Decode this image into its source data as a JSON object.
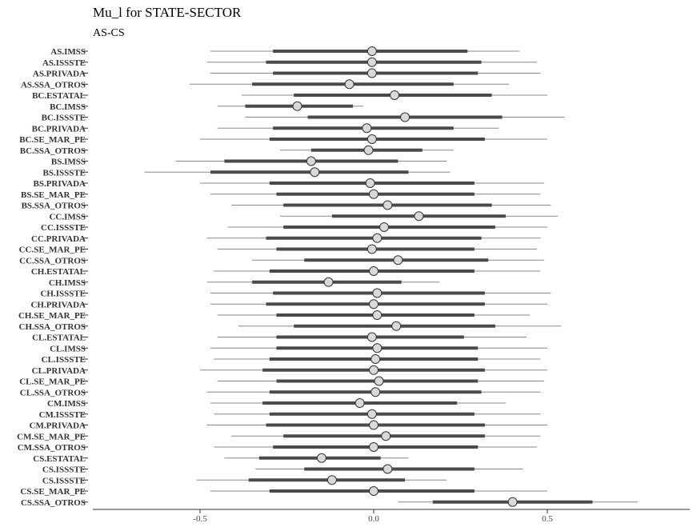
{
  "chart_data": {
    "type": "forest",
    "title": "Mu_l for STATE-SECTOR",
    "subtitle": "AS-CS",
    "xlim": [
      -0.78,
      0.9
    ],
    "xticks": [
      -0.5,
      0.0,
      0.5
    ],
    "xtick_labels": [
      "-0.5",
      "0.0",
      "0.5"
    ],
    "grid": false,
    "rows": [
      {
        "label": "AS.IMSS",
        "lo95": -0.47,
        "lo50": -0.29,
        "est": -0.005,
        "hi50": 0.27,
        "hi95": 0.42
      },
      {
        "label": "AS.ISSSTE",
        "lo95": -0.48,
        "lo50": -0.31,
        "est": -0.005,
        "hi50": 0.31,
        "hi95": 0.47
      },
      {
        "label": "AS.PRIVADA",
        "lo95": -0.47,
        "lo50": -0.29,
        "est": -0.005,
        "hi50": 0.3,
        "hi95": 0.48
      },
      {
        "label": "AS.SSA_OTROS",
        "lo95": -0.53,
        "lo50": -0.35,
        "est": -0.07,
        "hi50": 0.23,
        "hi95": 0.39
      },
      {
        "label": "BC.ESTATAL",
        "lo95": -0.38,
        "lo50": -0.23,
        "est": 0.06,
        "hi50": 0.34,
        "hi95": 0.5
      },
      {
        "label": "BC.IMSS",
        "lo95": -0.45,
        "lo50": -0.37,
        "est": -0.22,
        "hi50": -0.06,
        "hi95": -0.03
      },
      {
        "label": "BC.ISSSTE",
        "lo95": -0.37,
        "lo50": -0.19,
        "est": 0.09,
        "hi50": 0.37,
        "hi95": 0.55
      },
      {
        "label": "BC.PRIVADA",
        "lo95": -0.45,
        "lo50": -0.29,
        "est": -0.02,
        "hi50": 0.23,
        "hi95": 0.36
      },
      {
        "label": "BC.SE_MAR_PE",
        "lo95": -0.5,
        "lo50": -0.3,
        "est": -0.005,
        "hi50": 0.32,
        "hi95": 0.5
      },
      {
        "label": "BC.SSA_OTROS",
        "lo95": -0.27,
        "lo50": -0.18,
        "est": -0.015,
        "hi50": 0.14,
        "hi95": 0.23
      },
      {
        "label": "BS.IMSS",
        "lo95": -0.57,
        "lo50": -0.43,
        "est": -0.18,
        "hi50": 0.07,
        "hi95": 0.21
      },
      {
        "label": "BS.ISSSTE",
        "lo95": -0.66,
        "lo50": -0.47,
        "est": -0.17,
        "hi50": 0.1,
        "hi95": 0.22
      },
      {
        "label": "BS.PRIVADA",
        "lo95": -0.5,
        "lo50": -0.3,
        "est": -0.01,
        "hi50": 0.29,
        "hi95": 0.49
      },
      {
        "label": "BS.SE_MAR_PE",
        "lo95": -0.47,
        "lo50": -0.28,
        "est": 0.0,
        "hi50": 0.29,
        "hi95": 0.48
      },
      {
        "label": "BS.SSA_OTROS",
        "lo95": -0.41,
        "lo50": -0.26,
        "est": 0.04,
        "hi50": 0.34,
        "hi95": 0.51
      },
      {
        "label": "CC.IMSS",
        "lo95": -0.27,
        "lo50": -0.12,
        "est": 0.13,
        "hi50": 0.38,
        "hi95": 0.53
      },
      {
        "label": "CC.ISSSTE",
        "lo95": -0.42,
        "lo50": -0.26,
        "est": 0.03,
        "hi50": 0.35,
        "hi95": 0.5
      },
      {
        "label": "CC.PRIVADA",
        "lo95": -0.48,
        "lo50": -0.31,
        "est": 0.01,
        "hi50": 0.31,
        "hi95": 0.48
      },
      {
        "label": "CC.SE_MAR_PE",
        "lo95": -0.45,
        "lo50": -0.28,
        "est": -0.005,
        "hi50": 0.29,
        "hi95": 0.47
      },
      {
        "label": "CC.SSA_OTROS",
        "lo95": -0.35,
        "lo50": -0.2,
        "est": 0.07,
        "hi50": 0.33,
        "hi95": 0.49
      },
      {
        "label": "CH.ESTATAL",
        "lo95": -0.46,
        "lo50": -0.3,
        "est": 0.0,
        "hi50": 0.29,
        "hi95": 0.48
      },
      {
        "label": "CH.IMSS",
        "lo95": -0.48,
        "lo50": -0.35,
        "est": -0.13,
        "hi50": 0.08,
        "hi95": 0.19
      },
      {
        "label": "CH.ISSSTE",
        "lo95": -0.47,
        "lo50": -0.29,
        "est": 0.01,
        "hi50": 0.32,
        "hi95": 0.51
      },
      {
        "label": "CH.PRIVADA",
        "lo95": -0.47,
        "lo50": -0.31,
        "est": 0.0,
        "hi50": 0.32,
        "hi95": 0.5
      },
      {
        "label": "CH.SE_MAR_PE",
        "lo95": -0.45,
        "lo50": -0.28,
        "est": 0.01,
        "hi50": 0.29,
        "hi95": 0.45
      },
      {
        "label": "CH.SSA_OTROS",
        "lo95": -0.39,
        "lo50": -0.23,
        "est": 0.065,
        "hi50": 0.35,
        "hi95": 0.54
      },
      {
        "label": "CL.ESTATAL",
        "lo95": -0.45,
        "lo50": -0.28,
        "est": -0.005,
        "hi50": 0.26,
        "hi95": 0.44
      },
      {
        "label": "CL.IMSS",
        "lo95": -0.47,
        "lo50": -0.28,
        "est": 0.01,
        "hi50": 0.3,
        "hi95": 0.5
      },
      {
        "label": "CL.ISSSTE",
        "lo95": -0.46,
        "lo50": -0.3,
        "est": 0.005,
        "hi50": 0.3,
        "hi95": 0.48
      },
      {
        "label": "CL.PRIVADA",
        "lo95": -0.5,
        "lo50": -0.32,
        "est": 0.0,
        "hi50": 0.32,
        "hi95": 0.5
      },
      {
        "label": "CL.SE_MAR_PE",
        "lo95": -0.45,
        "lo50": -0.28,
        "est": 0.015,
        "hi50": 0.3,
        "hi95": 0.49
      },
      {
        "label": "CL.SSA_OTROS",
        "lo95": -0.48,
        "lo50": -0.3,
        "est": 0.005,
        "hi50": 0.31,
        "hi95": 0.48
      },
      {
        "label": "CM.IMSS",
        "lo95": -0.47,
        "lo50": -0.32,
        "est": -0.04,
        "hi50": 0.24,
        "hi95": 0.38
      },
      {
        "label": "CM.ISSSTE",
        "lo95": -0.46,
        "lo50": -0.3,
        "est": -0.005,
        "hi50": 0.29,
        "hi95": 0.48
      },
      {
        "label": "CM.PRIVADA",
        "lo95": -0.48,
        "lo50": -0.31,
        "est": 0.0,
        "hi50": 0.32,
        "hi95": 0.5
      },
      {
        "label": "CM.SE_MAR_PE",
        "lo95": -0.41,
        "lo50": -0.26,
        "est": 0.035,
        "hi50": 0.32,
        "hi95": 0.48
      },
      {
        "label": "CM.SSA_OTROS",
        "lo95": -0.46,
        "lo50": -0.29,
        "est": 0.0,
        "hi50": 0.3,
        "hi95": 0.47
      },
      {
        "label": "CS.ESTATAL",
        "lo95": -0.43,
        "lo50": -0.33,
        "est": -0.15,
        "hi50": 0.02,
        "hi95": 0.1
      },
      {
        "label": "CS.ISSSTE",
        "lo95": -0.34,
        "lo50": -0.2,
        "est": 0.04,
        "hi50": 0.29,
        "hi95": 0.43
      },
      {
        "label": "CS.ISSSTE",
        "lo95": -0.51,
        "lo50": -0.36,
        "est": -0.12,
        "hi50": 0.09,
        "hi95": 0.21
      },
      {
        "label": "CS.SE_MAR_PE",
        "lo95": -0.47,
        "lo50": -0.3,
        "est": 0.0,
        "hi50": 0.29,
        "hi95": 0.5
      },
      {
        "label": "CS.SSA_OTROS",
        "lo95": 0.07,
        "lo50": 0.17,
        "est": 0.4,
        "hi50": 0.63,
        "hi95": 0.76
      }
    ]
  }
}
